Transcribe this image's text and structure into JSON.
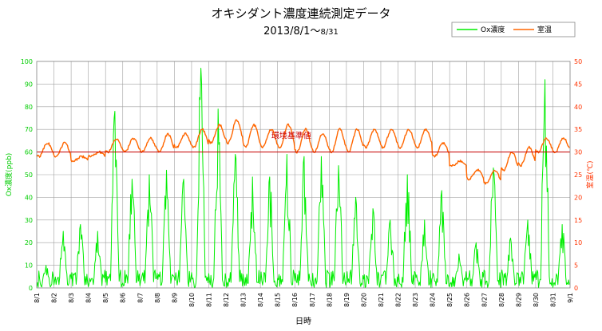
{
  "chart_data": {
    "type": "line",
    "title": "オキシダント濃度連続測定データ",
    "subtitle_main": "2013/8/1～",
    "subtitle_small": "8/31",
    "xlabel": "日時",
    "ylabel_left": "Ox濃度(ppb)",
    "ylabel_right": "室温(℃)",
    "ylim_left": [
      0,
      100
    ],
    "ylim_right": [
      0,
      50
    ],
    "yticks_left": [
      "0",
      "10",
      "20",
      "30",
      "40",
      "50",
      "60",
      "70",
      "80",
      "90",
      "100"
    ],
    "yticks_right": [
      "0",
      "5",
      "10",
      "15",
      "20",
      "25",
      "30",
      "35",
      "40",
      "45",
      "50"
    ],
    "grid": true,
    "legend_position": "top-right",
    "x_ticks": [
      "8/1",
      "8/2",
      "8/3",
      "8/4",
      "8/5",
      "8/6",
      "8/7",
      "8/8",
      "8/9",
      "8/10",
      "8/11",
      "8/12",
      "8/13",
      "8/14",
      "8/15",
      "8/16",
      "8/17",
      "8/18",
      "8/19",
      "8/20",
      "8/21",
      "8/22",
      "8/23",
      "8/24",
      "8/25",
      "8/26",
      "8/27",
      "8/28",
      "8/29",
      "8/30",
      "8/31",
      "9/1"
    ],
    "reference_line": {
      "label": "環境基準値",
      "value": 60,
      "axis": "left",
      "color": "#cc0000"
    },
    "series": [
      {
        "name": "Ox濃度",
        "axis": "left",
        "color": "#00ee00",
        "daily_max": [
          10,
          25,
          28,
          25,
          78,
          48,
          50,
          52,
          48,
          97,
          79,
          59,
          49,
          49,
          59,
          58,
          58,
          54,
          40,
          35,
          30,
          50,
          30,
          43,
          15,
          20,
          53,
          22,
          30,
          92,
          28
        ]
      },
      {
        "name": "室温",
        "axis": "right",
        "color": "#ff6600",
        "daily_max": [
          32,
          32,
          29,
          30,
          33,
          33,
          33,
          34,
          34,
          35,
          36,
          37,
          36,
          35,
          36,
          35,
          34,
          35,
          35,
          35,
          35,
          35,
          35,
          32,
          28,
          26,
          26,
          30,
          31,
          33,
          33
        ],
        "daily_min": [
          29,
          29,
          28,
          29,
          30,
          30,
          30,
          30,
          31,
          31,
          32,
          32,
          31,
          31,
          31,
          30,
          30,
          30,
          30,
          31,
          31,
          31,
          31,
          29,
          27,
          24,
          23,
          26,
          27,
          30,
          30
        ]
      }
    ]
  }
}
